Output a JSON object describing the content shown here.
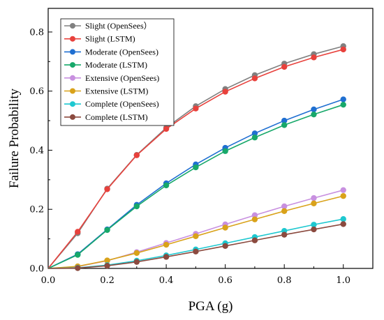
{
  "chart_data": {
    "type": "line",
    "xlabel": "PGA (g)",
    "ylabel": "Failure Probability",
    "xlim": [
      0.0,
      1.1
    ],
    "ylim": [
      0.0,
      0.88
    ],
    "xticks": [
      "0.0",
      "0.2",
      "0.4",
      "0.6",
      "0.8",
      "1.0"
    ],
    "yticks": [
      "0.0",
      "0.2",
      "0.4",
      "0.6",
      "0.8"
    ],
    "grid": false,
    "legend_position": "top-left",
    "x": [
      0.0,
      0.1,
      0.2,
      0.3,
      0.4,
      0.5,
      0.6,
      0.7,
      0.8,
      0.9,
      1.0
    ],
    "series": [
      {
        "name": "Slight (OpenSees）",
        "color": "#808080",
        "values": [
          0.0,
          0.119,
          0.27,
          0.384,
          0.476,
          0.549,
          0.607,
          0.654,
          0.693,
          0.725,
          0.752
        ]
      },
      {
        "name": "Slight (LSTM)",
        "color": "#e8413c",
        "values": [
          0.0,
          0.124,
          0.268,
          0.383,
          0.472,
          0.541,
          0.598,
          0.643,
          0.682,
          0.714,
          0.741
        ]
      },
      {
        "name": "Moderate (OpenSees)",
        "color": "#1f6fd1",
        "values": [
          0.0,
          0.048,
          0.132,
          0.215,
          0.288,
          0.352,
          0.408,
          0.457,
          0.5,
          0.538,
          0.572
        ]
      },
      {
        "name": "Moderate (LSTM)",
        "color": "#17a86a",
        "values": [
          0.0,
          0.046,
          0.13,
          0.21,
          0.281,
          0.342,
          0.397,
          0.443,
          0.485,
          0.521,
          0.554
        ]
      },
      {
        "name": "Extensive (OpenSees)",
        "color": "#c890e0",
        "values": [
          0.0,
          0.006,
          0.026,
          0.055,
          0.086,
          0.117,
          0.149,
          0.18,
          0.21,
          0.238,
          0.265
        ]
      },
      {
        "name": "Extensive (LSTM)",
        "color": "#d9a21a",
        "values": [
          0.0,
          0.007,
          0.027,
          0.052,
          0.08,
          0.109,
          0.138,
          0.166,
          0.194,
          0.22,
          0.245
        ]
      },
      {
        "name": "Complete (OpenSees)",
        "color": "#1ec8d0",
        "values": [
          0.0,
          0.002,
          0.011,
          0.026,
          0.044,
          0.064,
          0.085,
          0.106,
          0.127,
          0.148,
          0.167
        ]
      },
      {
        "name": "Complete (LSTM)",
        "color": "#8b4a3f",
        "values": [
          0.0,
          0.001,
          0.009,
          0.022,
          0.039,
          0.057,
          0.076,
          0.095,
          0.114,
          0.132,
          0.15
        ]
      }
    ]
  }
}
